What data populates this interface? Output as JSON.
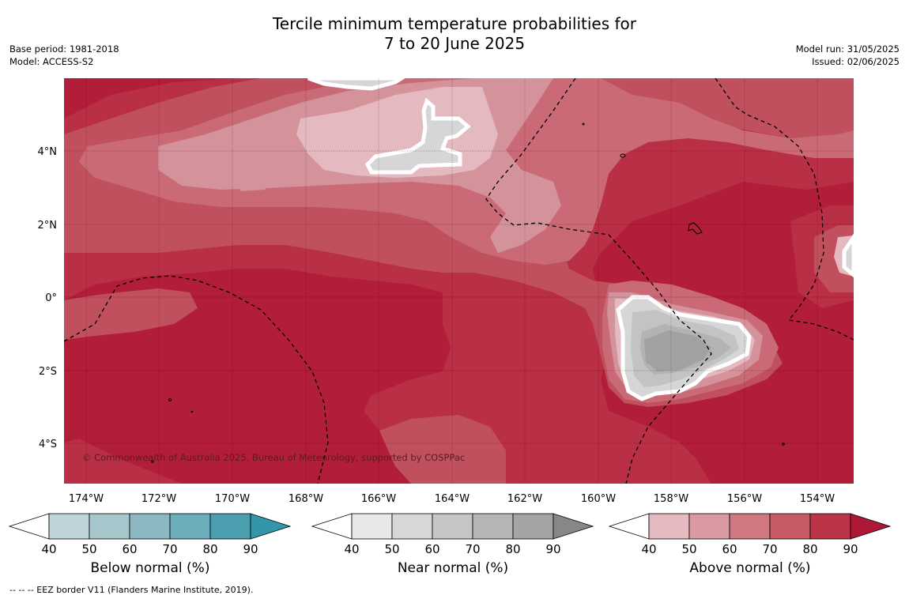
{
  "title_line1": "Tercile minimum temperature probabilities for",
  "title_line2": "7 to 20 June 2025",
  "meta_left": [
    "Base period: 1981-2018",
    "Model: ACCESS-S2"
  ],
  "meta_right": [
    "Model run: 31/05/2025",
    "Issued: 02/06/2025"
  ],
  "copyright": "© Commonwealth of Australia 2025, Bureau of Meteorology, supported by COSPPac",
  "footnote": "--  --  -- EEZ border V11 (Flanders Marine Institute, 2019).",
  "lat_labels": [
    {
      "value": 4,
      "text": "4°N"
    },
    {
      "value": 2,
      "text": "2°N"
    },
    {
      "value": 0,
      "text": "0°"
    },
    {
      "value": -2,
      "text": "2°S"
    },
    {
      "value": -4,
      "text": "4°S"
    }
  ],
  "lon_labels": [
    {
      "value": -174,
      "text": "174°W"
    },
    {
      "value": -172,
      "text": "172°W"
    },
    {
      "value": -170,
      "text": "170°W"
    },
    {
      "value": -168,
      "text": "168°W"
    },
    {
      "value": -166,
      "text": "166°W"
    },
    {
      "value": -164,
      "text": "164°W"
    },
    {
      "value": -162,
      "text": "162°W"
    },
    {
      "value": -160,
      "text": "160°W"
    },
    {
      "value": -158,
      "text": "158°W"
    },
    {
      "value": -156,
      "text": "156°W"
    },
    {
      "value": -154,
      "text": "154°W"
    }
  ],
  "colorbars": [
    {
      "title": "Below normal (%)",
      "ticks": [
        "40",
        "50",
        "60",
        "70",
        "80",
        "90"
      ],
      "colors": [
        "#bed4da",
        "#a7c6cc",
        "#8cb8c4",
        "#6caebc",
        "#4a9eb0",
        "#3497a9"
      ]
    },
    {
      "title": "Near normal (%)",
      "ticks": [
        "40",
        "50",
        "60",
        "70",
        "80",
        "90"
      ],
      "colors": [
        "#e8e8e8",
        "#d7d7d7",
        "#c6c6c6",
        "#b6b6b6",
        "#a4a4a4",
        "#878787"
      ]
    },
    {
      "title": "Above normal (%)",
      "ticks": [
        "40",
        "50",
        "60",
        "70",
        "80",
        "90"
      ],
      "colors": [
        "#e4b9bf",
        "#da9aa2",
        "#d07882",
        "#c65a66",
        "#bc3447",
        "#ae1836"
      ]
    }
  ],
  "map_colors": {
    "above_40": "#e4b9bf",
    "above_50": "#d4929b",
    "above_60": "#c96a76",
    "above_70": "#c0505e",
    "above_80": "#b92f45",
    "above_90": "#b21d3a",
    "near_50": "#d6d6d6",
    "near_60": "#c3c3c3",
    "near_70": "#b3b3b3",
    "near_80": "#a2a2a2"
  }
}
